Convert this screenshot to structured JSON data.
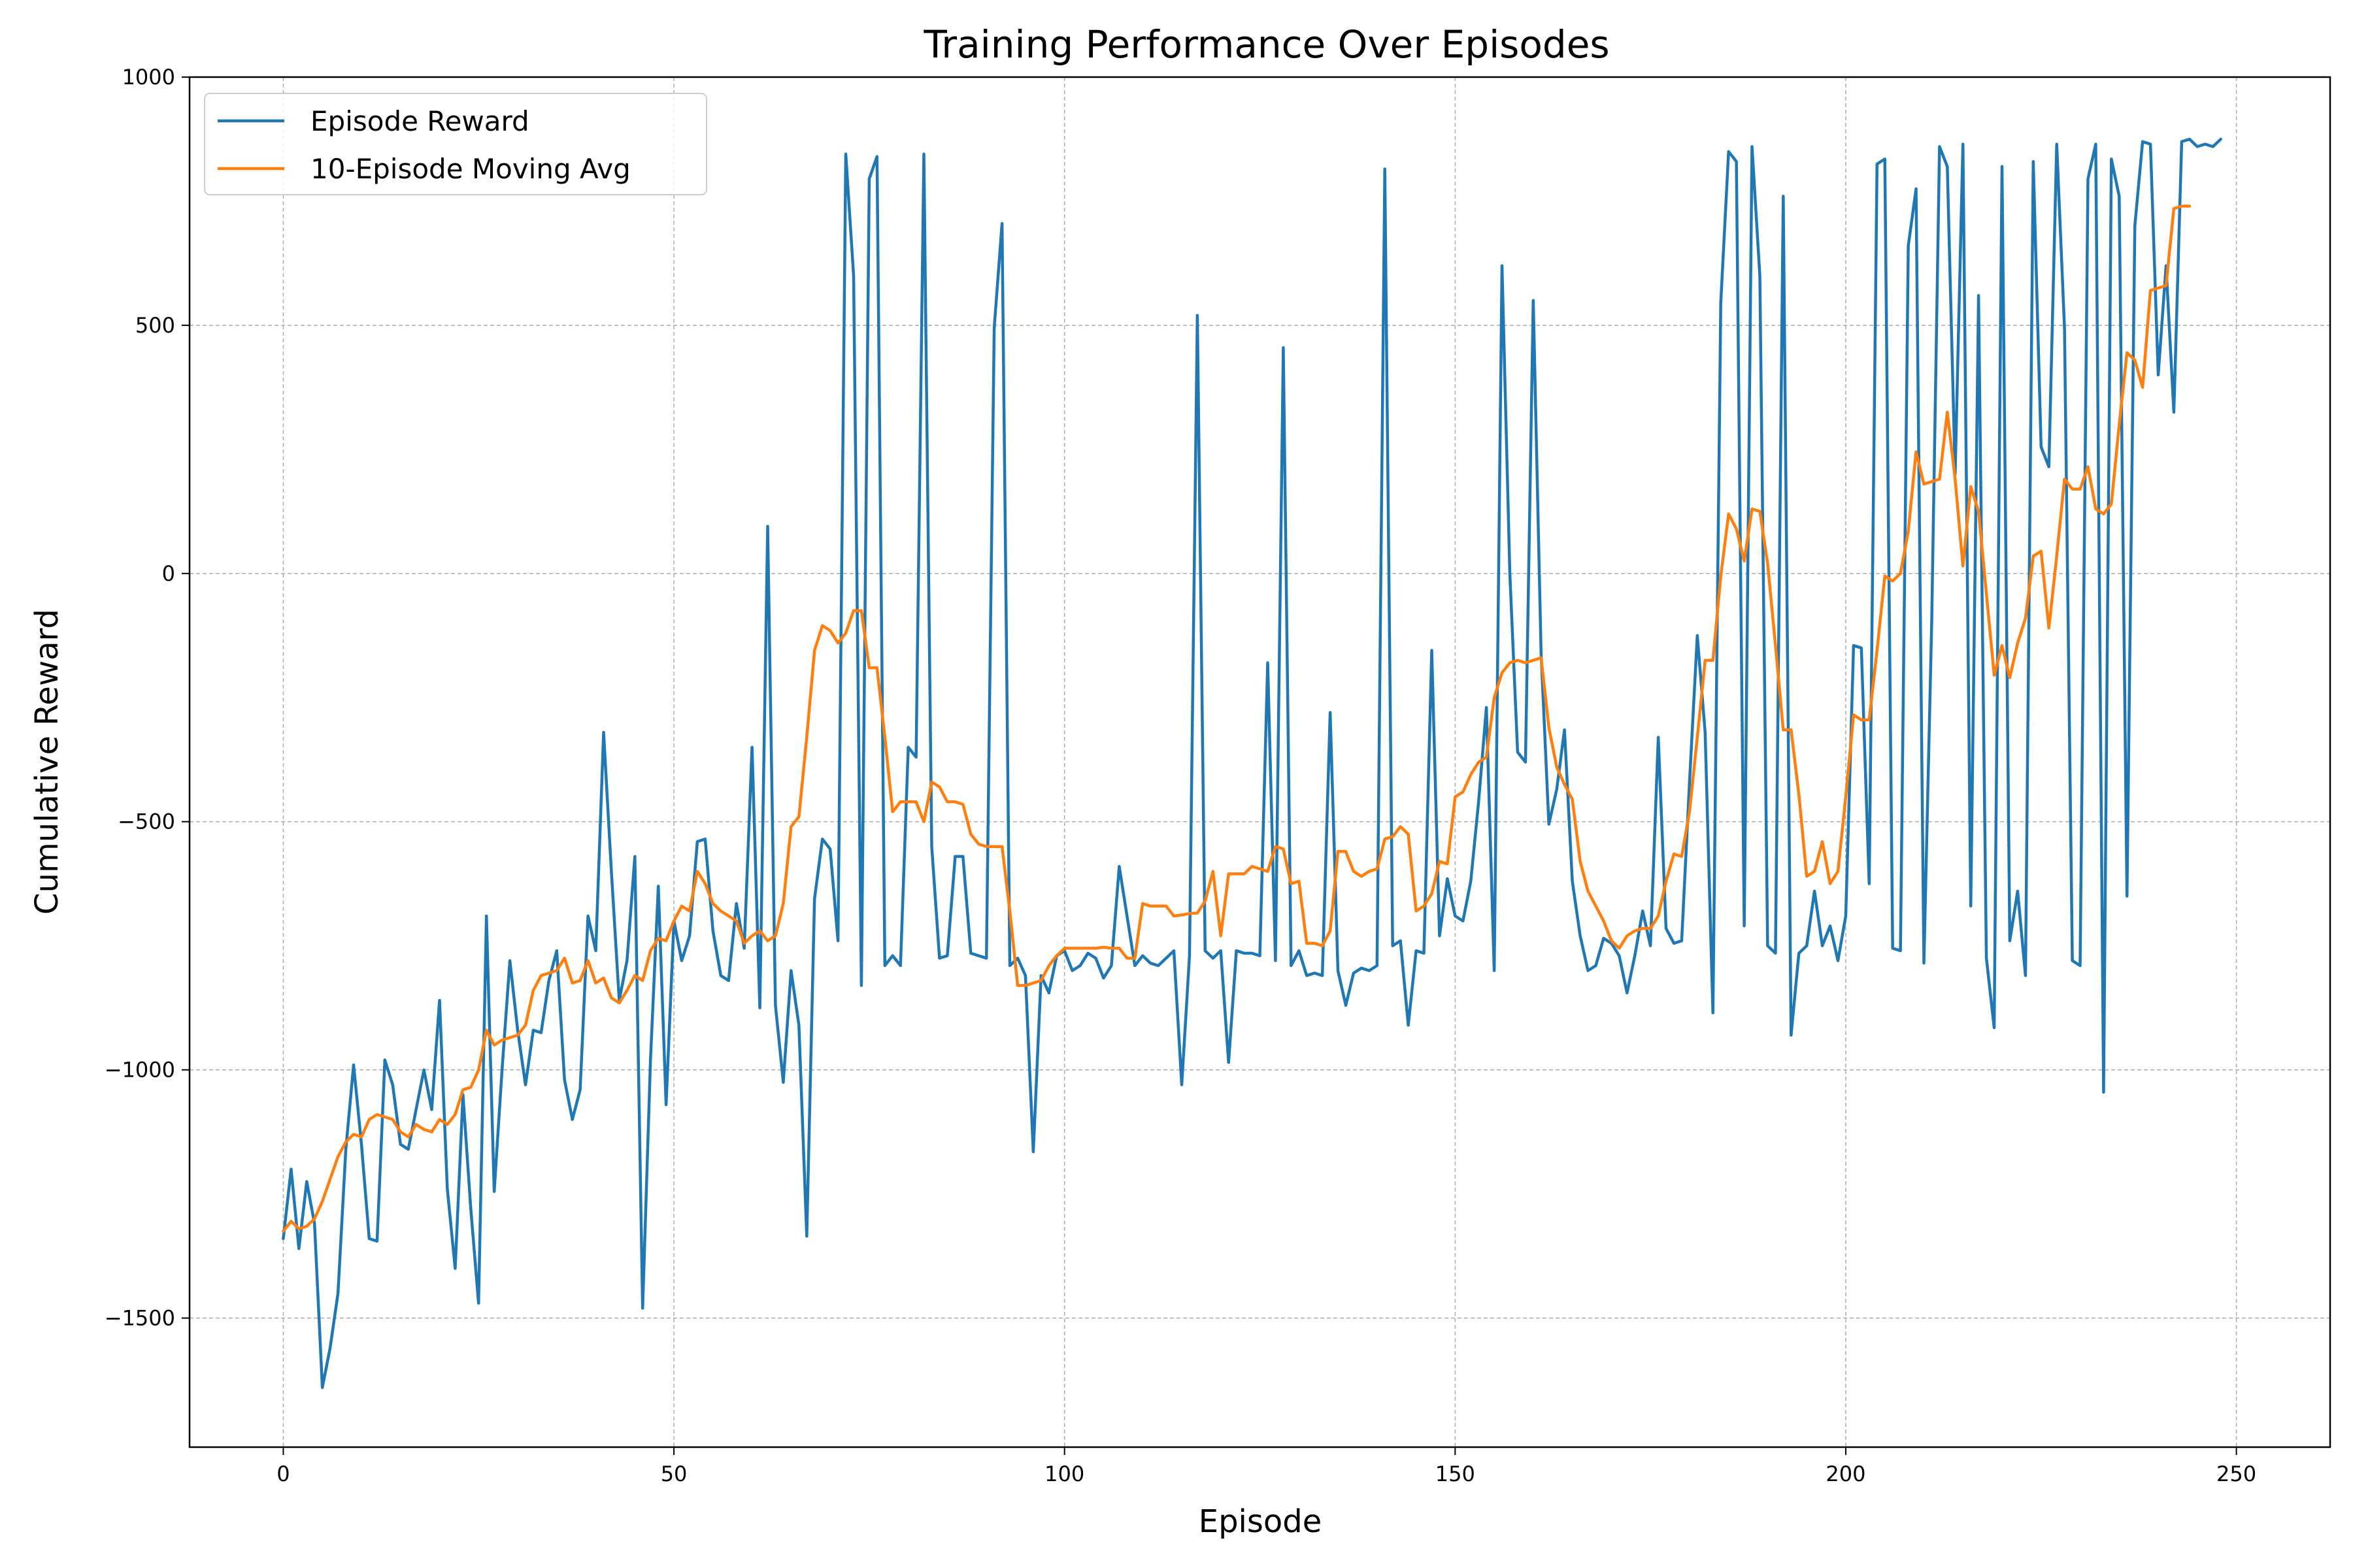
{
  "chart_data": {
    "type": "line",
    "title": "Training Performance Over Episodes",
    "xlabel": "Episode",
    "ylabel": "Cumulative Reward",
    "xlim": [
      -12,
      262
    ],
    "ylim": [
      -1760,
      1000
    ],
    "xticks": [
      0,
      50,
      100,
      150,
      200,
      250
    ],
    "yticks": [
      1000,
      500,
      0,
      -500,
      -1000,
      -1500
    ],
    "ytick_labels": [
      "1000",
      "500",
      "0",
      "−500",
      "−1000",
      "−1500"
    ],
    "xtick_labels": [
      "0",
      "50",
      "100",
      "150",
      "200",
      "250"
    ],
    "grid": true,
    "legend_position": "top-left",
    "series": [
      {
        "name": "Episode Reward",
        "color": "#1f77b4",
        "x_start": 0,
        "values": [
          -1340,
          -1200,
          -1360,
          -1225,
          -1310,
          -1640,
          -1560,
          -1450,
          -1160,
          -990,
          -1150,
          -1340,
          -1345,
          -980,
          -1030,
          -1150,
          -1160,
          -1080,
          -1000,
          -1080,
          -860,
          -1240,
          -1400,
          -1050,
          -1280,
          -1470,
          -690,
          -1245,
          -1000,
          -780,
          -920,
          -1030,
          -920,
          -925,
          -820,
          -760,
          -1020,
          -1100,
          -1040,
          -690,
          -760,
          -320,
          -600,
          -860,
          -780,
          -570,
          -1480,
          -980,
          -630,
          -1070,
          -700,
          -780,
          -730,
          -540,
          -535,
          -720,
          -810,
          -820,
          -665,
          -755,
          -350,
          -875,
          95,
          -870,
          -1025,
          -800,
          -910,
          -1335,
          -655,
          -535,
          -555,
          -740,
          845,
          600,
          -830,
          795,
          840,
          -790,
          -770,
          -790,
          -350,
          -370,
          845,
          -550,
          -775,
          -770,
          -570,
          -570,
          -765,
          -770,
          -775,
          495,
          705,
          -790,
          -775,
          -810,
          -1165,
          -810,
          -845,
          -770,
          -760,
          -800,
          -790,
          -765,
          -775,
          -815,
          -790,
          -590,
          -690,
          -790,
          -770,
          -785,
          -790,
          -775,
          -760,
          -1030,
          -770,
          520,
          -760,
          -775,
          -760,
          -985,
          -760,
          -765,
          -765,
          -770,
          -180,
          -780,
          455,
          -790,
          -760,
          -810,
          -805,
          -810,
          -280,
          -800,
          -870,
          -805,
          -795,
          -800,
          -790,
          815,
          -750,
          -740,
          -910,
          -760,
          -765,
          -155,
          -730,
          -615,
          -690,
          -700,
          -620,
          -460,
          -270,
          -800,
          620,
          0,
          -360,
          -380,
          550,
          -160,
          -505,
          -435,
          -315,
          -620,
          -730,
          -800,
          -790,
          -735,
          -745,
          -770,
          -845,
          -770,
          -680,
          -750,
          -330,
          -715,
          -745,
          -740,
          -420,
          -125,
          -320,
          -885,
          545,
          850,
          830,
          -710,
          860,
          600,
          -750,
          -765,
          760,
          -930,
          -765,
          -750,
          -640,
          -750,
          -710,
          -780,
          -690,
          -145,
          -150,
          -625,
          825,
          835,
          -755,
          -760,
          660,
          775,
          -785,
          -100,
          860,
          820,
          200,
          865,
          -670,
          560,
          -775,
          -915,
          820,
          -740,
          -640,
          -810,
          830,
          255,
          215,
          865,
          495,
          -780,
          -790,
          795,
          865,
          -1045,
          835,
          760,
          -650,
          700,
          870,
          865,
          400,
          620,
          325,
          870,
          875,
          860,
          865,
          860,
          875
        ]
      },
      {
        "name": "10-Episode Moving Avg",
        "color": "#ff7f0e",
        "x_start": 0,
        "values": [
          -1325,
          -1305,
          -1320,
          -1315,
          -1300,
          -1265,
          -1220,
          -1175,
          -1145,
          -1130,
          -1135,
          -1100,
          -1090,
          -1095,
          -1100,
          -1125,
          -1135,
          -1110,
          -1120,
          -1125,
          -1100,
          -1110,
          -1090,
          -1040,
          -1035,
          -1000,
          -920,
          -950,
          -940,
          -935,
          -930,
          -910,
          -840,
          -810,
          -805,
          -800,
          -775,
          -825,
          -820,
          -780,
          -825,
          -815,
          -855,
          -865,
          -840,
          -810,
          -820,
          -760,
          -735,
          -740,
          -700,
          -670,
          -680,
          -600,
          -625,
          -665,
          -680,
          -690,
          -700,
          -745,
          -730,
          -720,
          -740,
          -730,
          -665,
          -510,
          -490,
          -330,
          -155,
          -105,
          -115,
          -140,
          -120,
          -75,
          -75,
          -190,
          -190,
          -330,
          -480,
          -460,
          -460,
          -460,
          -500,
          -420,
          -430,
          -460,
          -460,
          -465,
          -525,
          -545,
          -550,
          -550,
          -550,
          -680,
          -830,
          -830,
          -825,
          -820,
          -790,
          -770,
          -755,
          -755,
          -755,
          -755,
          -755,
          -753,
          -755,
          -755,
          -775,
          -775,
          -665,
          -670,
          -670,
          -670,
          -690,
          -688,
          -685,
          -684,
          -660,
          -600,
          -730,
          -605,
          -605,
          -605,
          -590,
          -595,
          -600,
          -550,
          -555,
          -625,
          -620,
          -745,
          -745,
          -750,
          -720,
          -560,
          -560,
          -600,
          -610,
          -600,
          -595,
          -535,
          -530,
          -510,
          -525,
          -680,
          -670,
          -645,
          -580,
          -585,
          -450,
          -440,
          -405,
          -380,
          -370,
          -250,
          -200,
          -180,
          -175,
          -180,
          -175,
          -170,
          -310,
          -390,
          -425,
          -455,
          -580,
          -640,
          -670,
          -700,
          -740,
          -755,
          -730,
          -720,
          -715,
          -715,
          -690,
          -620,
          -565,
          -570,
          -480,
          -330,
          -175,
          -175,
          -5,
          120,
          90,
          25,
          130,
          125,
          20,
          -145,
          -315,
          -315,
          -445,
          -610,
          -600,
          -540,
          -625,
          -600,
          -450,
          -285,
          -295,
          -295,
          -155,
          -5,
          -15,
          0,
          85,
          245,
          180,
          185,
          190,
          325,
          190,
          15,
          175,
          125,
          -40,
          -205,
          -145,
          -210,
          -140,
          -90,
          35,
          45,
          -110,
          35,
          190,
          170,
          170,
          215,
          130,
          120,
          140,
          300,
          445,
          430,
          375,
          570,
          575,
          580,
          735,
          740,
          740
        ]
      }
    ]
  }
}
